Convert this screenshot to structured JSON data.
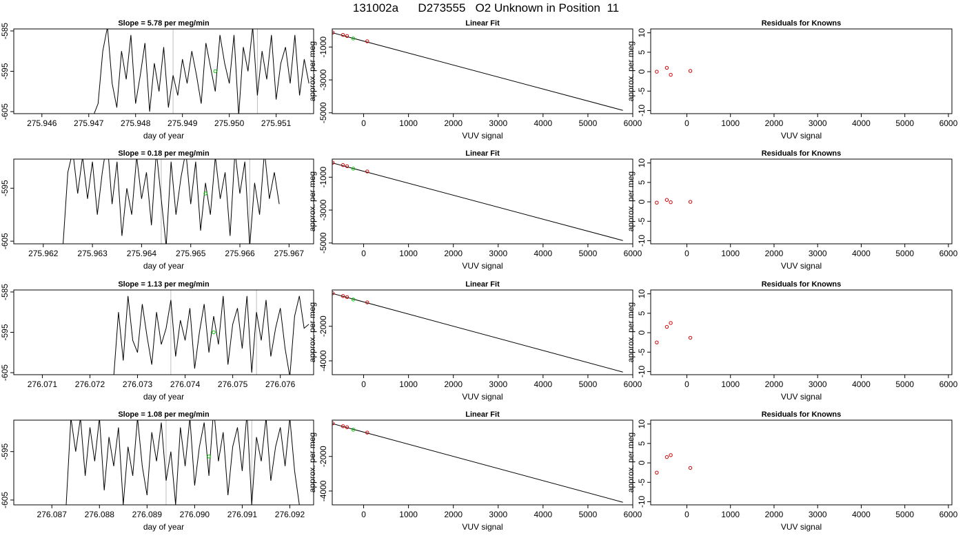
{
  "figure_title": "131002a      D273555   O2 Unknown in Position  11",
  "colors": {
    "line": "#000000",
    "unknown_point": "#00cc00",
    "known_point": "#cc0000",
    "vline": "#bebebe"
  },
  "chart_data": [
    {
      "type": "line",
      "row": 0,
      "kind": "time",
      "title": "Slope =  5.78  per meg/min",
      "xlabel": "day of year",
      "ylabel": "approx. per meg",
      "xlim": [
        275.9454,
        275.9518
      ],
      "ylim": [
        -605.5,
        -584.5
      ],
      "xticks": [
        275.946,
        275.947,
        275.948,
        275.949,
        275.95,
        275.951
      ],
      "xtick_labels": [
        "275.946",
        "275.947",
        "275.948",
        "275.949",
        "275.950",
        "275.951"
      ],
      "yticks": [
        -585,
        -595,
        -605
      ],
      "ytick_labels": [
        "-585",
        "-595",
        "-605"
      ],
      "vlines": [
        275.9488,
        275.9506
      ],
      "point": {
        "x": 275.9497,
        "y": -595
      },
      "x": [
        275.9471,
        275.9472,
        275.9473,
        275.9474,
        275.9475,
        275.9476,
        275.9477,
        275.9478,
        275.9479,
        275.948,
        275.9481,
        275.9482,
        275.9483,
        275.9484,
        275.9485,
        275.9486,
        275.9487,
        275.9488,
        275.9489,
        275.949,
        275.9491,
        275.9492,
        275.9493,
        275.9494,
        275.9495,
        275.9496,
        275.9497,
        275.9498,
        275.9499,
        275.95,
        275.9501,
        275.9502,
        275.9503,
        275.9504,
        275.9505,
        275.9506,
        275.9507,
        275.9508,
        275.9509,
        275.951,
        275.9511,
        275.9512,
        275.9513,
        275.9514,
        275.9515,
        275.9516,
        275.9517
      ],
      "y": [
        -606,
        -603,
        -590,
        -584,
        -598,
        -604,
        -590,
        -597,
        -586,
        -603,
        -596,
        -588,
        -605,
        -593,
        -600,
        -589,
        -604,
        -596,
        -601,
        -592,
        -598,
        -590,
        -596,
        -603,
        -588,
        -594,
        -600,
        -586,
        -593,
        -598,
        -586,
        -606,
        -589,
        -595,
        -584,
        -601,
        -590,
        -597,
        -586,
        -602,
        -593,
        -589,
        -598,
        -586,
        -601,
        -592,
        -598
      ]
    },
    {
      "type": "scatter",
      "row": 0,
      "kind": "fit",
      "title": "Linear Fit",
      "xlabel": "VUV signal",
      "ylabel": "approx. per meg",
      "xlim": [
        -700,
        6000
      ],
      "ylim": [
        -5050,
        100
      ],
      "xticks": [
        0,
        1000,
        2000,
        3000,
        4000,
        5000,
        6000
      ],
      "xtick_labels": [
        "0",
        "1000",
        "2000",
        "3000",
        "4000",
        "5000",
        "6000"
      ],
      "yticks": [
        -1000,
        -3000,
        -5000
      ],
      "ytick_labels": [
        "-1000",
        "-3000",
        "-5000"
      ],
      "fit_line": {
        "x": [
          -700,
          5780
        ],
        "y": [
          -130,
          -4850
        ]
      },
      "knowns": {
        "x": [
          -690,
          -460,
          -370,
          80
        ],
        "y": [
          -120,
          -265,
          -330,
          -650
        ]
      },
      "unknown": {
        "x": -230,
        "y": -480
      }
    },
    {
      "type": "scatter",
      "row": 0,
      "kind": "resid",
      "title": "Residuals for Knowns",
      "xlabel": "VUV signal",
      "ylabel": "approx. per meg",
      "xlim": [
        -830,
        6080
      ],
      "ylim": [
        -10.8,
        11
      ],
      "xticks": [
        0,
        1000,
        2000,
        3000,
        4000,
        5000,
        6000
      ],
      "xtick_labels": [
        "0",
        "1000",
        "2000",
        "3000",
        "4000",
        "5000",
        "6000"
      ],
      "yticks": [
        10,
        5,
        0,
        -5,
        -10
      ],
      "ytick_labels": [
        "10",
        "5",
        "0",
        "-5",
        "-10"
      ],
      "knowns": {
        "x": [
          -690,
          -460,
          -370,
          80
        ],
        "y": [
          0,
          1,
          -0.8,
          0.2
        ]
      }
    },
    {
      "type": "line",
      "row": 1,
      "kind": "time",
      "title": "Slope =  0.18  per meg/min",
      "xlabel": "day of year",
      "ylabel": "approx. per meg",
      "xlim": [
        275.9614,
        275.9675
      ],
      "ylim": [
        -605.5,
        -589.5
      ],
      "xticks": [
        275.962,
        275.963,
        275.964,
        275.965,
        275.966,
        275.967
      ],
      "xtick_labels": [
        "275.962",
        "275.963",
        "275.964",
        "275.965",
        "275.966",
        "275.967"
      ],
      "yticks": [
        -595,
        -605
      ],
      "ytick_labels": [
        "-595",
        "-605"
      ],
      "vlines": [
        275.9644,
        275.9662
      ],
      "point": {
        "x": 275.9653,
        "y": -596
      },
      "x": [
        275.9624,
        275.9625,
        275.9626,
        275.9627,
        275.9628,
        275.9629,
        275.963,
        275.9631,
        275.9632,
        275.9633,
        275.9634,
        275.9635,
        275.9636,
        275.9637,
        275.9638,
        275.9639,
        275.964,
        275.9641,
        275.9642,
        275.9643,
        275.9644,
        275.9645,
        275.9646,
        275.9647,
        275.9648,
        275.9649,
        275.965,
        275.9651,
        275.9652,
        275.9653,
        275.9654,
        275.9655,
        275.9656,
        275.9657,
        275.9658,
        275.9659,
        275.966,
        275.9661,
        275.9662,
        275.9663,
        275.9664,
        275.9665,
        275.9666,
        275.9667,
        275.9668
      ],
      "y": [
        -606,
        -592,
        -588,
        -596,
        -589,
        -597,
        -590,
        -600,
        -592,
        -586,
        -598,
        -590,
        -604,
        -595,
        -600,
        -589,
        -597,
        -592,
        -602,
        -588,
        -597,
        -606,
        -590,
        -600,
        -593,
        -588,
        -598,
        -590,
        -603,
        -594,
        -600,
        -589,
        -597,
        -592,
        -604,
        -588,
        -596,
        -590,
        -606,
        -594,
        -600,
        -588,
        -597,
        -592,
        -598
      ]
    },
    {
      "type": "scatter",
      "row": 1,
      "kind": "fit",
      "title": "Linear Fit",
      "xlabel": "VUV signal",
      "ylabel": "approx. per meg",
      "xlim": [
        -700,
        6000
      ],
      "ylim": [
        -5050,
        100
      ],
      "xticks": [
        0,
        1000,
        2000,
        3000,
        4000,
        5000,
        6000
      ],
      "xtick_labels": [
        "0",
        "1000",
        "2000",
        "3000",
        "4000",
        "5000",
        "6000"
      ],
      "yticks": [
        -1000,
        -3000,
        -5000
      ],
      "ytick_labels": [
        "-1000",
        "-3000",
        "-5000"
      ],
      "fit_line": {
        "x": [
          -700,
          5780
        ],
        "y": [
          -130,
          -4850
        ]
      },
      "knowns": {
        "x": [
          -690,
          -460,
          -370,
          80
        ],
        "y": [
          -120,
          -265,
          -330,
          -650
        ]
      },
      "unknown": {
        "x": -230,
        "y": -480
      }
    },
    {
      "type": "scatter",
      "row": 1,
      "kind": "resid",
      "title": "Residuals for Knowns",
      "xlabel": "VUV signal",
      "ylabel": "approx. per meg",
      "xlim": [
        -830,
        6080
      ],
      "ylim": [
        -10.8,
        11
      ],
      "xticks": [
        0,
        1000,
        2000,
        3000,
        4000,
        5000,
        6000
      ],
      "xtick_labels": [
        "0",
        "1000",
        "2000",
        "3000",
        "4000",
        "5000",
        "6000"
      ],
      "yticks": [
        10,
        5,
        0,
        -5,
        -10
      ],
      "ytick_labels": [
        "10",
        "5",
        "0",
        "-5",
        "-10"
      ],
      "knowns": {
        "x": [
          -690,
          -460,
          -370,
          80
        ],
        "y": [
          -0.2,
          0.5,
          -0.1,
          0
        ]
      }
    },
    {
      "type": "line",
      "row": 2,
      "kind": "time",
      "title": "Slope =  1.13  per meg/min",
      "xlabel": "day of year",
      "ylabel": "approx. per meg",
      "xlim": [
        276.0704,
        276.0767
      ],
      "ylim": [
        -605.5,
        -584.5
      ],
      "xticks": [
        276.071,
        276.072,
        276.073,
        276.074,
        276.075,
        276.076
      ],
      "xtick_labels": [
        "276.071",
        "276.072",
        "276.073",
        "276.074",
        "276.075",
        "276.076"
      ],
      "yticks": [
        -585,
        -595,
        -605
      ],
      "ytick_labels": [
        "-585",
        "-595",
        "-605"
      ],
      "vlines": [
        276.0737,
        276.0755
      ],
      "point": {
        "x": 276.0746,
        "y": -595
      },
      "x": [
        276.0725,
        276.0726,
        276.0727,
        276.0728,
        276.0729,
        276.073,
        276.0731,
        276.0732,
        276.0733,
        276.0734,
        276.0735,
        276.0736,
        276.0737,
        276.0738,
        276.0739,
        276.074,
        276.0741,
        276.0742,
        276.0743,
        276.0744,
        276.0745,
        276.0746,
        276.0747,
        276.0748,
        276.0749,
        276.075,
        276.0751,
        276.0752,
        276.0753,
        276.0754,
        276.0755,
        276.0756,
        276.0757,
        276.0758,
        276.0759,
        276.076,
        276.0761,
        276.0762,
        276.0763,
        276.0764,
        276.0765,
        276.0766
      ],
      "y": [
        -606,
        -590,
        -602,
        -586,
        -597,
        -600,
        -588,
        -596,
        -603,
        -590,
        -598,
        -594,
        -587,
        -601,
        -592,
        -597,
        -589,
        -604,
        -595,
        -588,
        -600,
        -591,
        -598,
        -586,
        -603,
        -593,
        -589,
        -599,
        -586,
        -605,
        -590,
        -597,
        -587,
        -601,
        -594,
        -589,
        -599,
        -606,
        -591,
        -586,
        -594,
        -593
      ]
    },
    {
      "type": "scatter",
      "row": 2,
      "kind": "fit",
      "title": "Linear Fit",
      "xlabel": "VUV signal",
      "ylabel": "approx. per meg",
      "xlim": [
        -700,
        6000
      ],
      "ylim": [
        -4800,
        100
      ],
      "xticks": [
        0,
        1000,
        2000,
        3000,
        4000,
        5000,
        6000
      ],
      "xtick_labels": [
        "0",
        "1000",
        "2000",
        "3000",
        "4000",
        "5000",
        "6000"
      ],
      "yticks": [
        -2000,
        -4000
      ],
      "ytick_labels": [
        "-2000",
        "-4000"
      ],
      "fit_line": {
        "x": [
          -700,
          5780
        ],
        "y": [
          -100,
          -4650
        ]
      },
      "knowns": {
        "x": [
          -690,
          -460,
          -370,
          80
        ],
        "y": [
          -90,
          -250,
          -310,
          -620
        ]
      },
      "unknown": {
        "x": -230,
        "y": -450
      }
    },
    {
      "type": "scatter",
      "row": 2,
      "kind": "resid",
      "title": "Residuals for Knowns",
      "xlabel": "VUV signal",
      "ylabel": "approx. per meg",
      "xlim": [
        -830,
        6080
      ],
      "ylim": [
        -10.8,
        11
      ],
      "xticks": [
        0,
        1000,
        2000,
        3000,
        4000,
        5000,
        6000
      ],
      "xtick_labels": [
        "0",
        "1000",
        "2000",
        "3000",
        "4000",
        "5000",
        "6000"
      ],
      "yticks": [
        10,
        5,
        0,
        -5,
        -10
      ],
      "ytick_labels": [
        "10",
        "5",
        "0",
        "-5",
        "-10"
      ],
      "knowns": {
        "x": [
          -690,
          -460,
          -370,
          80
        ],
        "y": [
          -2.5,
          1.5,
          2.5,
          -1.3
        ]
      }
    },
    {
      "type": "line",
      "row": 3,
      "kind": "time",
      "title": "Slope =  1.08  per meg/min",
      "xlabel": "day of year",
      "ylabel": "approx. per meg",
      "xlim": [
        276.0862,
        276.0925
      ],
      "ylim": [
        -606,
        -588.5
      ],
      "xticks": [
        276.087,
        276.088,
        276.089,
        276.09,
        276.091,
        276.092
      ],
      "xtick_labels": [
        "276.087",
        "276.088",
        "276.089",
        "276.090",
        "276.091",
        "276.092"
      ],
      "yticks": [
        -595,
        -605
      ],
      "ytick_labels": [
        "-595",
        "-605"
      ],
      "vlines": [
        276.0894,
        276.0912
      ],
      "point": {
        "x": 276.0903,
        "y": -596
      },
      "x": [
        276.0873,
        276.0874,
        276.0875,
        276.0876,
        276.0877,
        276.0878,
        276.0879,
        276.088,
        276.0881,
        276.0882,
        276.0883,
        276.0884,
        276.0885,
        276.0886,
        276.0887,
        276.0888,
        276.0889,
        276.089,
        276.0891,
        276.0892,
        276.0893,
        276.0894,
        276.0895,
        276.0896,
        276.0897,
        276.0898,
        276.0899,
        276.09,
        276.0901,
        276.0902,
        276.0903,
        276.0904,
        276.0905,
        276.0906,
        276.0907,
        276.0908,
        276.0909,
        276.091,
        276.0911,
        276.0912,
        276.0913,
        276.0914,
        276.0915,
        276.0916,
        276.0917,
        276.0918,
        276.0919,
        276.092,
        276.0921,
        276.0922
      ],
      "y": [
        -606,
        -588,
        -595,
        -588,
        -600,
        -590,
        -597,
        -588,
        -603,
        -592,
        -598,
        -590,
        -606,
        -594,
        -600,
        -588,
        -598,
        -604,
        -591,
        -597,
        -589,
        -601,
        -595,
        -606,
        -590,
        -598,
        -588,
        -602,
        -594,
        -589,
        -600,
        -586,
        -597,
        -591,
        -604,
        -594,
        -590,
        -599,
        -587,
        -606,
        -592,
        -597,
        -588,
        -601,
        -594,
        -590,
        -598,
        -588,
        -599,
        -606
      ]
    },
    {
      "type": "scatter",
      "row": 3,
      "kind": "fit",
      "title": "Linear Fit",
      "xlabel": "VUV signal",
      "ylabel": "approx. per meg",
      "xlim": [
        -700,
        6000
      ],
      "ylim": [
        -4800,
        100
      ],
      "xticks": [
        0,
        1000,
        2000,
        3000,
        4000,
        5000,
        6000
      ],
      "xtick_labels": [
        "0",
        "1000",
        "2000",
        "3000",
        "4000",
        "5000",
        "6000"
      ],
      "yticks": [
        -2000,
        -4000
      ],
      "ytick_labels": [
        "-2000",
        "-4000"
      ],
      "fit_line": {
        "x": [
          -700,
          5780
        ],
        "y": [
          -100,
          -4650
        ]
      },
      "knowns": {
        "x": [
          -690,
          -460,
          -370,
          80
        ],
        "y": [
          -90,
          -250,
          -310,
          -620
        ]
      },
      "unknown": {
        "x": -230,
        "y": -450
      }
    },
    {
      "type": "scatter",
      "row": 3,
      "kind": "resid",
      "title": "Residuals for Knowns",
      "xlabel": "VUV signal",
      "ylabel": "approx. per meg",
      "xlim": [
        -830,
        6080
      ],
      "ylim": [
        -10.8,
        11
      ],
      "xticks": [
        0,
        1000,
        2000,
        3000,
        4000,
        5000,
        6000
      ],
      "xtick_labels": [
        "0",
        "1000",
        "2000",
        "3000",
        "4000",
        "5000",
        "6000"
      ],
      "yticks": [
        10,
        5,
        0,
        -5,
        -10
      ],
      "ytick_labels": [
        "10",
        "5",
        "0",
        "-5",
        "-10"
      ],
      "knowns": {
        "x": [
          -690,
          -460,
          -370,
          80
        ],
        "y": [
          -2.5,
          1.5,
          2,
          -1.3
        ]
      }
    }
  ]
}
